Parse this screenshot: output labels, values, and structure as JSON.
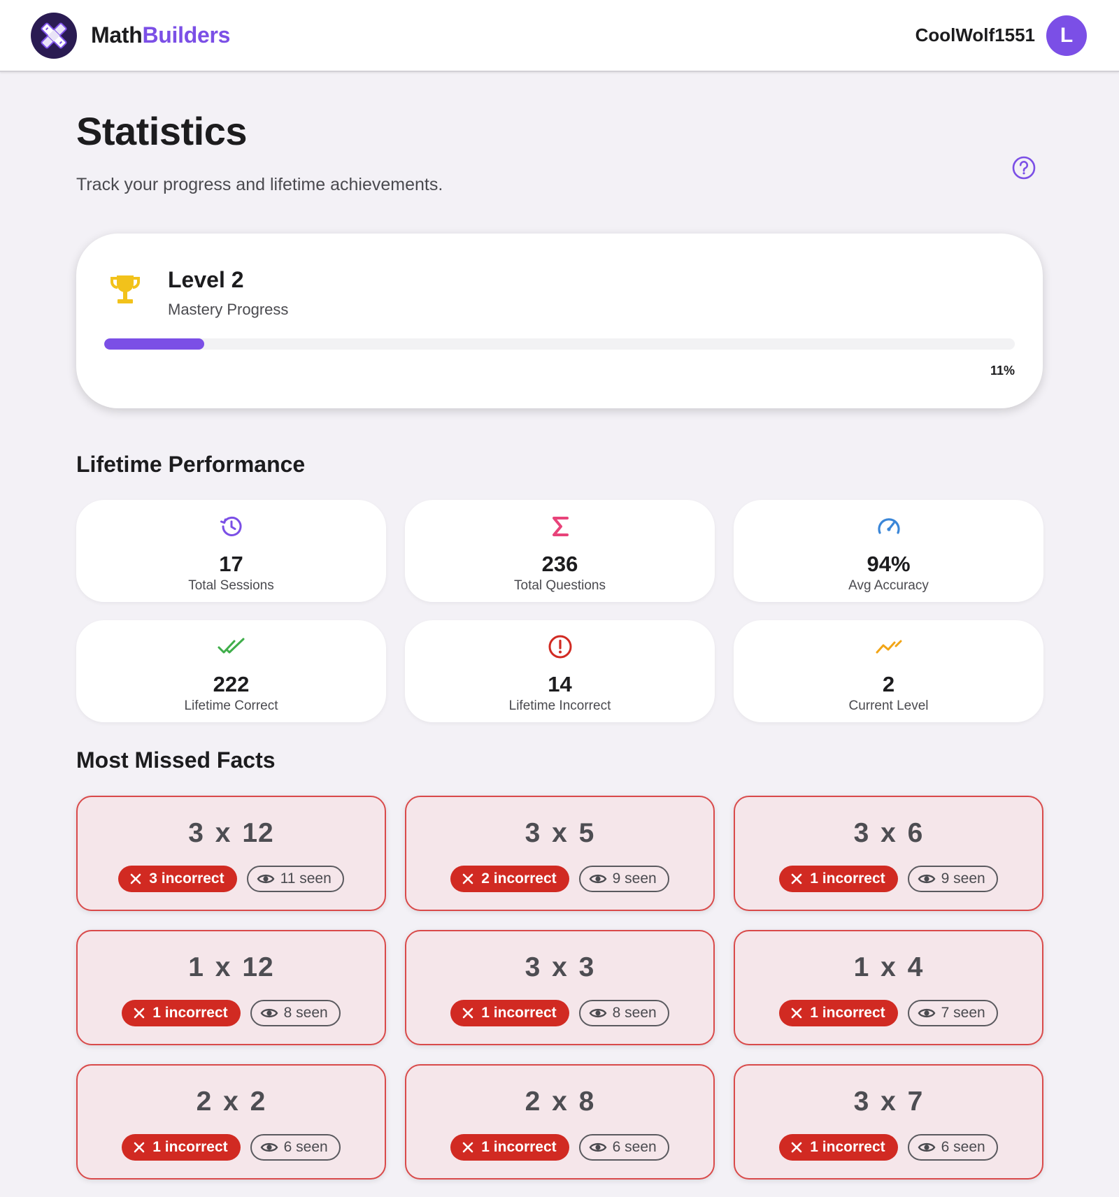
{
  "header": {
    "brand_part1": "Math",
    "brand_part2": "Builders",
    "username": "CoolWolf1551",
    "avatar_initial": "L",
    "accent_color": "#7b4fe6"
  },
  "page": {
    "title": "Statistics",
    "subtitle": "Track your progress and lifetime achievements.",
    "help_icon": "help-circle-icon"
  },
  "level": {
    "title": "Level 2",
    "subtitle": "Mastery Progress",
    "progress_label": "11%",
    "progress_fraction": 0.11,
    "icon": "trophy-icon",
    "icon_color": "#f2c21b"
  },
  "lifetime": {
    "title": "Lifetime Performance",
    "stats": [
      {
        "value": "17",
        "label": "Total Sessions",
        "icon": "history-icon",
        "color": "#7b4fe6"
      },
      {
        "value": "236",
        "label": "Total Questions",
        "icon": "sigma-icon",
        "color": "#e8437a"
      },
      {
        "value": "94%",
        "label": "Avg Accuracy",
        "icon": "speedometer-icon",
        "color": "#3a86d8"
      },
      {
        "value": "222",
        "label": "Lifetime Correct",
        "icon": "double-check-icon",
        "color": "#3fae4a"
      },
      {
        "value": "14",
        "label": "Lifetime Incorrect",
        "icon": "alert-circle-icon",
        "color": "#d12a22"
      },
      {
        "value": "2",
        "label": "Current Level",
        "icon": "trending-up-icon",
        "color": "#f2a516"
      }
    ]
  },
  "missed": {
    "title": "Most Missed Facts",
    "facts": [
      {
        "fact": "3 x 12",
        "incorrect": "3 incorrect",
        "seen": "11 seen"
      },
      {
        "fact": "3 x 5",
        "incorrect": "2 incorrect",
        "seen": "9 seen"
      },
      {
        "fact": "3 x 6",
        "incorrect": "1 incorrect",
        "seen": "9 seen"
      },
      {
        "fact": "1 x 12",
        "incorrect": "1 incorrect",
        "seen": "8 seen"
      },
      {
        "fact": "3 x 3",
        "incorrect": "1 incorrect",
        "seen": "8 seen"
      },
      {
        "fact": "1 x 4",
        "incorrect": "1 incorrect",
        "seen": "7 seen"
      },
      {
        "fact": "2 x 2",
        "incorrect": "1 incorrect",
        "seen": "6 seen"
      },
      {
        "fact": "2 x 8",
        "incorrect": "1 incorrect",
        "seen": "6 seen"
      },
      {
        "fact": "3 x 7",
        "incorrect": "1 incorrect",
        "seen": "6 seen"
      }
    ]
  }
}
